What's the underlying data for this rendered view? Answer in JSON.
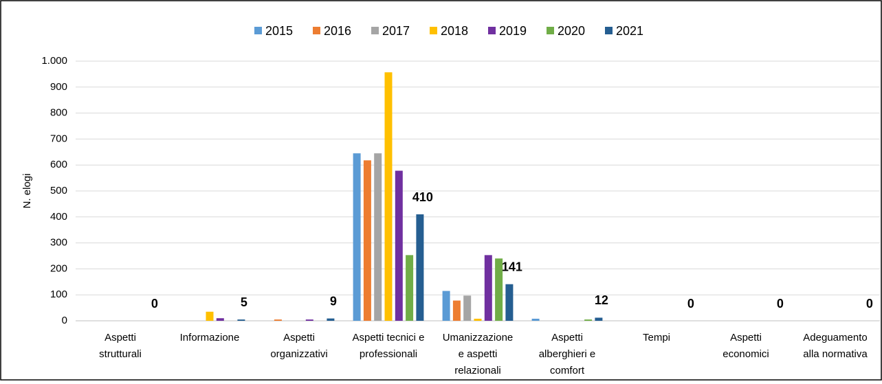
{
  "chart_data": {
    "type": "bar",
    "y_label": "N. elogi",
    "categories": [
      [
        "Aspetti",
        "strutturali"
      ],
      [
        "Informazione"
      ],
      [
        "Aspetti",
        "organizzativi"
      ],
      [
        "Aspetti tecnici e",
        "professionali"
      ],
      [
        "Umanizzazione",
        "e aspetti",
        "relazionali"
      ],
      [
        "Aspetti",
        "alberghieri e",
        "comfort"
      ],
      [
        "Tempi"
      ],
      [
        "Aspetti",
        "economici"
      ],
      [
        "Adeguamento",
        "alla normativa"
      ]
    ],
    "series": [
      {
        "name": "2015",
        "color": "#5b9bd5",
        "values": [
          0,
          0,
          0,
          645,
          115,
          8,
          0,
          0,
          0
        ]
      },
      {
        "name": "2016",
        "color": "#ed7d31",
        "values": [
          0,
          0,
          5,
          618,
          78,
          0,
          0,
          0,
          0
        ]
      },
      {
        "name": "2017",
        "color": "#a5a5a5",
        "values": [
          0,
          0,
          0,
          645,
          97,
          0,
          0,
          0,
          0
        ]
      },
      {
        "name": "2018",
        "color": "#ffc000",
        "values": [
          0,
          35,
          0,
          957,
          8,
          0,
          0,
          0,
          0
        ]
      },
      {
        "name": "2019",
        "color": "#7030a0",
        "values": [
          0,
          10,
          5,
          578,
          253,
          0,
          0,
          0,
          0
        ]
      },
      {
        "name": "2020",
        "color": "#70ad47",
        "values": [
          0,
          0,
          0,
          253,
          240,
          5,
          0,
          0,
          0
        ]
      },
      {
        "name": "2021",
        "color": "#255e91",
        "values": [
          0,
          5,
          9,
          410,
          141,
          12,
          0,
          0,
          0
        ],
        "data_labels": true
      }
    ],
    "ylim": [
      0,
      1000
    ],
    "yticks": [
      0,
      100,
      200,
      300,
      400,
      500,
      600,
      700,
      800,
      900,
      {
        "value": 1000,
        "label": "1.000"
      }
    ],
    "grid": true,
    "legend": "top"
  }
}
